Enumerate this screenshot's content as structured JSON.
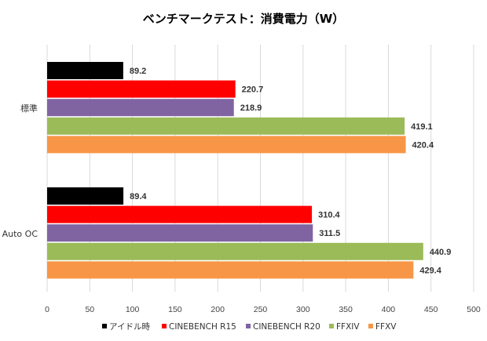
{
  "chart_data": {
    "type": "bar",
    "orientation": "horizontal",
    "title": "ベンチマークテスト：消費電力（W）",
    "categories": [
      "標準",
      "Auto OC"
    ],
    "series": [
      {
        "name": "アイドル時",
        "color": "#000000",
        "values": [
          89.2,
          89.4
        ]
      },
      {
        "name": "CINEBENCH R15",
        "color": "#ff0000",
        "values": [
          220.7,
          310.4
        ]
      },
      {
        "name": "CINEBENCH R20",
        "color": "#8064a2",
        "values": [
          218.9,
          311.5
        ]
      },
      {
        "name": "FFXIV",
        "color": "#9bbb59",
        "values": [
          419.1,
          440.9
        ]
      },
      {
        "name": "FFXV",
        "color": "#f79646",
        "values": [
          420.4,
          429.4
        ]
      }
    ],
    "xlim": [
      0,
      500
    ],
    "xticks": [
      0,
      50,
      100,
      150,
      200,
      250,
      300,
      350,
      400,
      450,
      500
    ],
    "grid": true,
    "legend_position": "bottom"
  }
}
